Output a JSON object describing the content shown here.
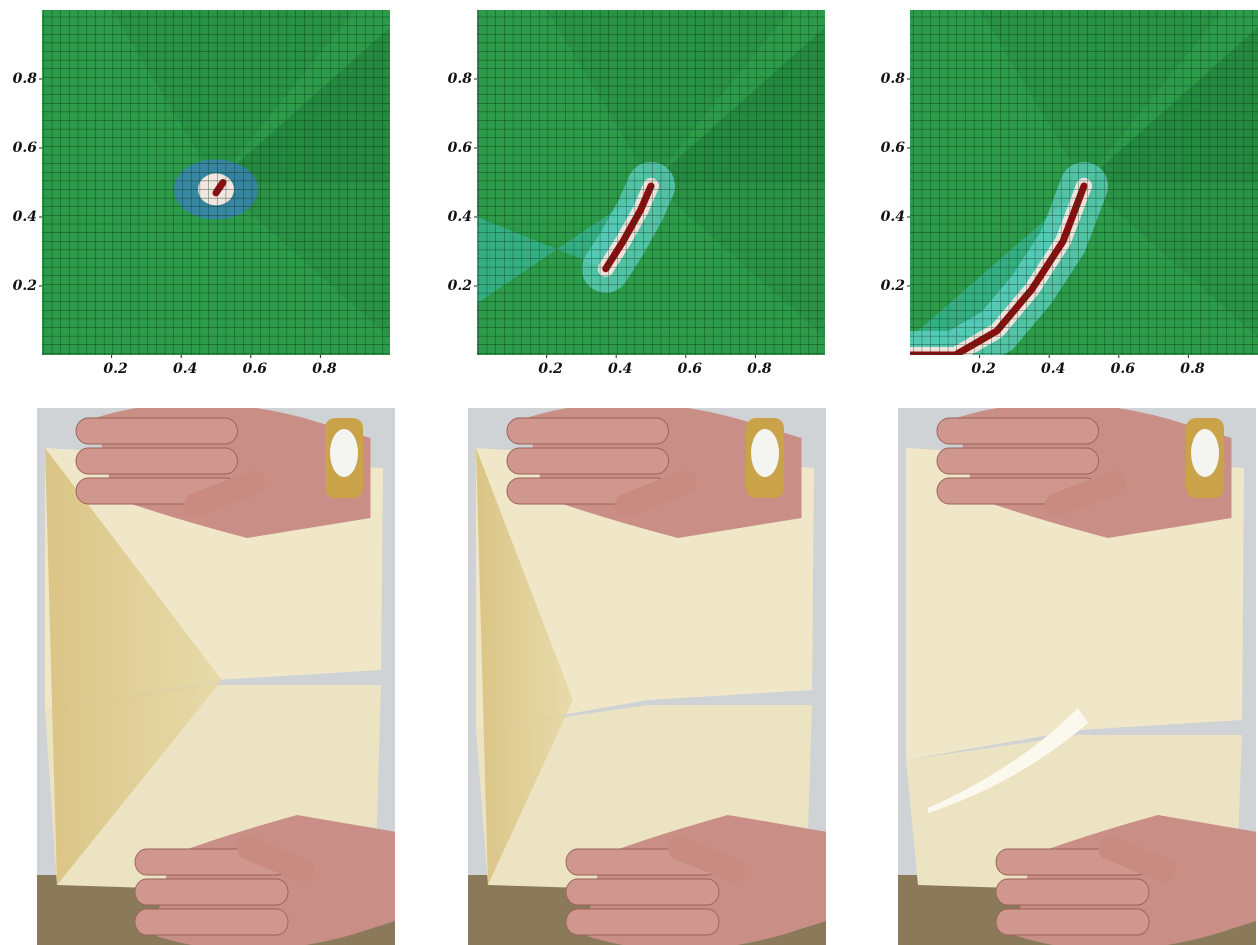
{
  "chart_data": [
    {
      "type": "heatmap",
      "xlim": [
        0,
        1
      ],
      "ylim": [
        0,
        1
      ],
      "xticks": [
        0.2,
        0.4,
        0.6,
        0.8
      ],
      "yticks": [
        0.2,
        0.4,
        0.6,
        0.8
      ]
    },
    {
      "type": "heatmap",
      "xlim": [
        0,
        1
      ],
      "ylim": [
        0,
        1
      ],
      "xticks": [
        0.2,
        0.4,
        0.6,
        0.8
      ],
      "yticks": [
        0.2,
        0.4,
        0.6,
        0.8
      ]
    },
    {
      "type": "heatmap",
      "xlim": [
        0,
        1
      ],
      "ylim": [
        0,
        1
      ],
      "xticks": [
        0.2,
        0.4,
        0.6,
        0.8
      ],
      "yticks": [
        0.2,
        0.4,
        0.6,
        0.8
      ]
    }
  ]
}
